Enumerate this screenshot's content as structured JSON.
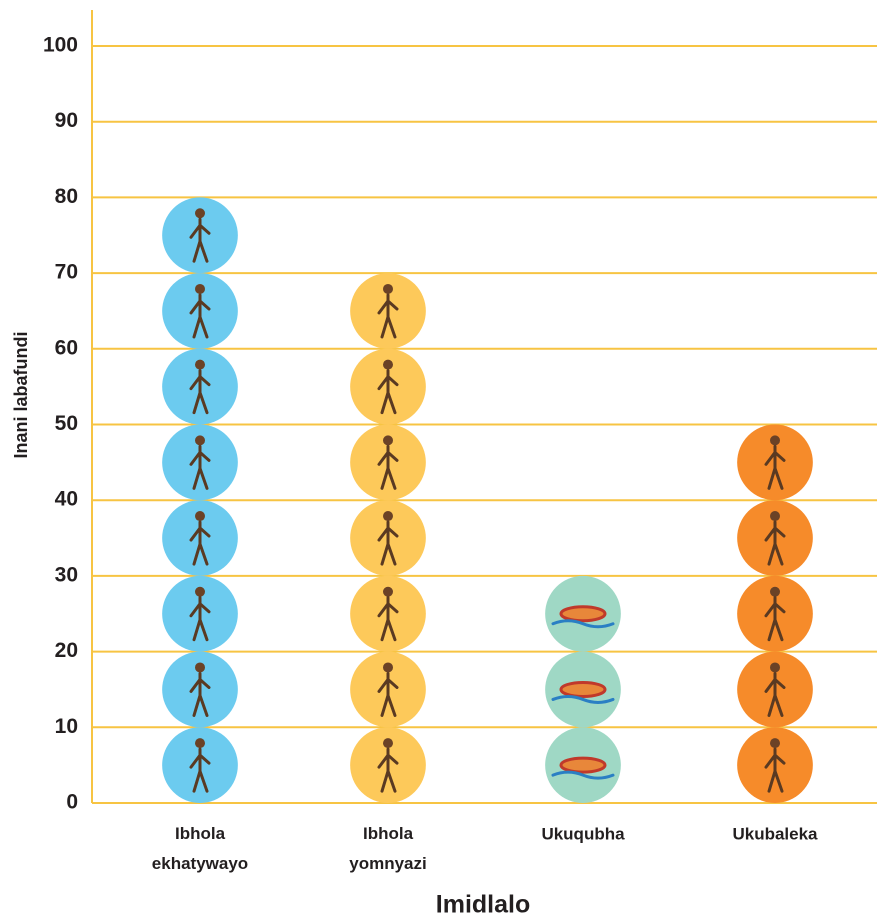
{
  "chart_data": {
    "type": "pictograph",
    "x_label": "Imidlalo",
    "y_label": "Inani labafundi",
    "categories": [
      "Ibhola ekhatywayo",
      "Ibhola yomnyazi",
      "Ukuqubha",
      "Ukubaleka"
    ],
    "values": [
      80,
      70,
      30,
      50
    ],
    "colors": [
      "#6ccbef",
      "#fdc95a",
      "#9fd8c5",
      "#f68b2a"
    ],
    "ylim": [
      0,
      100
    ],
    "yticks": [
      0,
      10,
      20,
      30,
      40,
      50,
      60,
      70,
      80,
      90,
      100
    ],
    "grid": true,
    "grid_color": "#f7c443"
  }
}
